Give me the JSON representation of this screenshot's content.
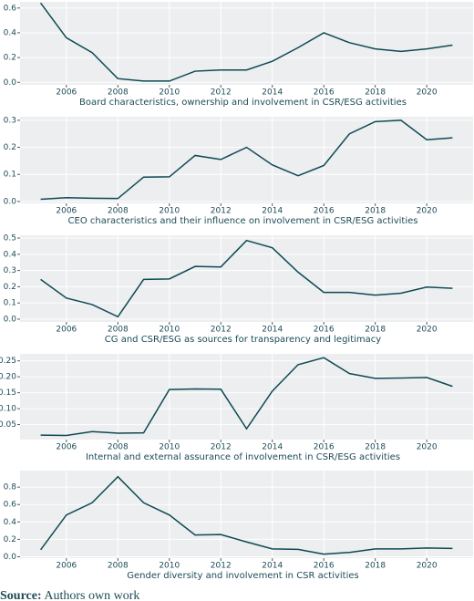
{
  "chart_data": [
    {
      "type": "line",
      "xlabel": "Board characteristics, ownership and involvement in CSR/ESG activities",
      "x": [
        2005,
        2006,
        2007,
        2008,
        2009,
        2010,
        2011,
        2012,
        2013,
        2014,
        2015,
        2016,
        2017,
        2018,
        2019,
        2020,
        2021
      ],
      "values": [
        0.64,
        0.36,
        0.24,
        0.03,
        0.01,
        0.01,
        0.09,
        0.1,
        0.1,
        0.17,
        0.28,
        0.4,
        0.32,
        0.27,
        0.25,
        0.27,
        0.3
      ],
      "color": "#0d4a52",
      "grid": true,
      "xlim": [
        2004.2,
        2021.8
      ],
      "xticks": [
        2006,
        2008,
        2010,
        2012,
        2014,
        2016,
        2018,
        2020
      ],
      "ylim": [
        -0.02,
        0.65
      ],
      "yticks": [
        {
          "value": 0,
          "label": "0.0"
        },
        0.2,
        0.4,
        0.6
      ]
    },
    {
      "type": "line",
      "xlabel": "CEO characteristics and their influence on involvement in CSR/ESG activities",
      "x": [
        2005,
        2006,
        2007,
        2008,
        2009,
        2010,
        2011,
        2012,
        2013,
        2014,
        2015,
        2016,
        2017,
        2018,
        2019,
        2020,
        2021
      ],
      "values": [
        0.008,
        0.014,
        0.012,
        0.011,
        0.09,
        0.091,
        0.17,
        0.155,
        0.2,
        0.135,
        0.095,
        0.133,
        0.25,
        0.295,
        0.3,
        0.228,
        0.235
      ],
      "color": "#0d4a52",
      "grid": true,
      "xlim": [
        2004.2,
        2021.8
      ],
      "xticks": [
        2006,
        2008,
        2010,
        2012,
        2014,
        2016,
        2018,
        2020
      ],
      "ylim": [
        -0.007,
        0.313
      ],
      "yticks": [
        {
          "value": 0,
          "label": "0.0"
        },
        0.1,
        0.2,
        0.3
      ]
    },
    {
      "type": "line",
      "xlabel": "CG and CSR/ESG as sources for transparency and legitimacy",
      "x": [
        2005,
        2006,
        2007,
        2008,
        2009,
        2010,
        2011,
        2012,
        2013,
        2014,
        2015,
        2016,
        2017,
        2018,
        2019,
        2020,
        2021
      ],
      "values": [
        0.245,
        0.13,
        0.09,
        0.015,
        0.245,
        0.248,
        0.325,
        0.322,
        0.485,
        0.44,
        0.29,
        0.165,
        0.165,
        0.148,
        0.16,
        0.198,
        0.19
      ],
      "color": "#0d4a52",
      "grid": true,
      "xlim": [
        2004.2,
        2021.8
      ],
      "xticks": [
        2006,
        2008,
        2010,
        2012,
        2014,
        2016,
        2018,
        2020
      ],
      "ylim": [
        -0.017,
        0.517
      ],
      "yticks": [
        {
          "value": 0,
          "label": "0.0"
        },
        0.1,
        0.2,
        0.3,
        0.4,
        0.5
      ]
    },
    {
      "type": "line",
      "xlabel": "Internal and external assurance of involvement in CSR/ESG activities",
      "x": [
        2005,
        2006,
        2007,
        2008,
        2009,
        2010,
        2011,
        2012,
        2013,
        2014,
        2015,
        2016,
        2017,
        2018,
        2019,
        2020,
        2021
      ],
      "values": [
        0.017,
        0.016,
        0.028,
        0.023,
        0.024,
        0.16,
        0.162,
        0.161,
        0.037,
        0.155,
        0.238,
        0.26,
        0.21,
        0.195,
        0.196,
        0.198,
        0.17
      ],
      "color": "#0d4a52",
      "grid": true,
      "xlim": [
        2004.2,
        2021.8
      ],
      "xticks": [
        2006,
        2008,
        2010,
        2012,
        2014,
        2016,
        2018,
        2020
      ],
      "ylim": [
        0.003,
        0.272
      ],
      "yticks": [
        0.05,
        {
          "value": 0.1,
          "label": "0.10"
        },
        0.15,
        {
          "value": 0.2,
          "label": "0.20"
        },
        0.25
      ]
    },
    {
      "type": "line",
      "xlabel": "Gender diversity and involvement in CSR activities",
      "x": [
        2005,
        2006,
        2007,
        2008,
        2009,
        2010,
        2011,
        2012,
        2013,
        2014,
        2015,
        2016,
        2017,
        2018,
        2019,
        2020,
        2021
      ],
      "values": [
        0.08,
        0.48,
        0.62,
        0.92,
        0.62,
        0.48,
        0.25,
        0.255,
        0.17,
        0.09,
        0.085,
        0.03,
        0.05,
        0.09,
        0.09,
        0.1,
        0.095
      ],
      "color": "#0d4a52",
      "grid": true,
      "xlim": [
        2004.2,
        2021.8
      ],
      "xticks": [
        2006,
        2008,
        2010,
        2012,
        2014,
        2016,
        2018,
        2020
      ],
      "ylim": [
        -0.016,
        0.99
      ],
      "yticks": [
        {
          "value": 0,
          "label": "0.0"
        },
        0.2,
        0.4,
        0.6,
        0.8
      ]
    }
  ],
  "source": {
    "label": "Source:",
    "text": "Authors own work"
  }
}
